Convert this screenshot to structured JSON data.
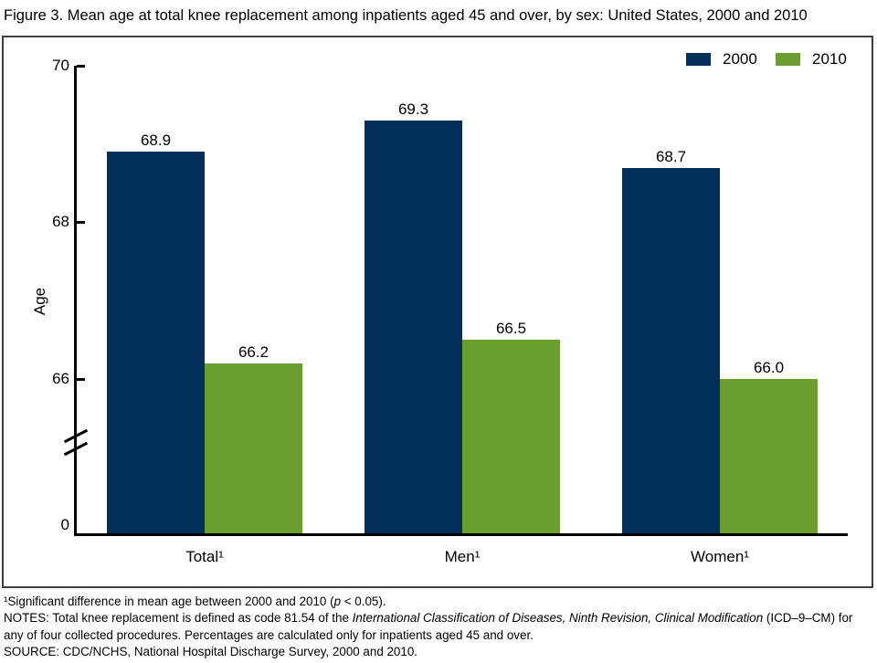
{
  "title": "Figure 3. Mean age at total knee replacement among inpatients aged 45 and over, by sex: United States, 2000 and 2010",
  "chart_data": {
    "type": "bar",
    "categories": [
      "Total¹",
      "Men¹",
      "Women¹"
    ],
    "series": [
      {
        "name": "2000",
        "color": "#02305a",
        "values": [
          68.9,
          69.3,
          68.7
        ]
      },
      {
        "name": "2010",
        "color": "#6a9e2e",
        "values": [
          66.2,
          66.5,
          66.0
        ]
      }
    ],
    "title": "Figure 3. Mean age at total knee replacement among inpatients aged 45 and over, by sex: United States, 2000 and 2010",
    "xlabel": "",
    "ylabel": "Age",
    "yticks": [
      "70",
      "68",
      "66",
      "0"
    ],
    "axis_break": true,
    "ylim_display": [
      66,
      70
    ],
    "grid": false,
    "legend_position": "top-right",
    "value_labels": "one-decimal"
  },
  "footnotes": {
    "fn1_pre": "¹Significant difference in mean age between 2000 and 2010 (",
    "fn1_italic": "p",
    "fn1_post": " < 0.05).",
    "notes_pre": "NOTES: Total knee replacement is defined as code 81.54 of the ",
    "notes_italic": "International Classification of Diseases, Ninth Revision, Clinical Modification",
    "notes_post": " (ICD–9–CM) for any of four collected procedures. Percentages are calculated only for inpatients aged 45 and over.",
    "source": "SOURCE: CDC/NCHS, National Hospital Discharge Survey, 2000 and 2010."
  }
}
